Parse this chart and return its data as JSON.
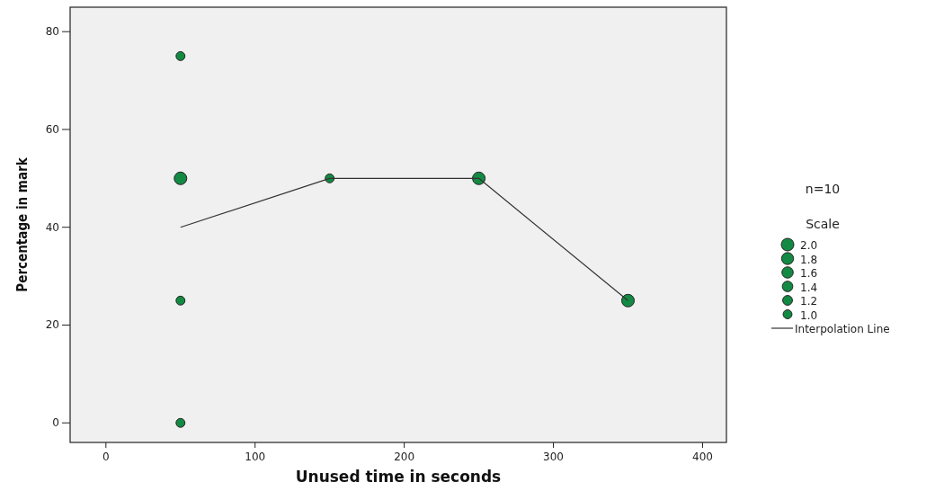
{
  "chart_data": {
    "type": "bubble",
    "xlabel": "Unused time in seconds",
    "ylabel": "Percentage in mark",
    "xlim": [
      -24,
      416
    ],
    "xticks": [
      0,
      100,
      200,
      300,
      400
    ],
    "ylim": [
      -4,
      85
    ],
    "yticks": [
      0,
      20,
      40,
      60,
      80
    ],
    "grid": false,
    "legend": "right",
    "legend_title": "Scale",
    "size_legend": [
      {
        "value": 2,
        "label": "2.0"
      },
      {
        "value": 1.8,
        "label": "1.8"
      },
      {
        "value": 1.6,
        "label": "1.6"
      },
      {
        "value": 1.4,
        "label": "1.4"
      },
      {
        "value": 1.2,
        "label": "1.2"
      },
      {
        "value": 1,
        "label": "1.0"
      }
    ],
    "annotations": [
      "n=10"
    ],
    "series": [
      {
        "color": "#138a43",
        "x": [
          50,
          50,
          50,
          50,
          150,
          250,
          350
        ],
        "values": [
          75,
          50,
          25,
          0,
          50,
          50,
          25
        ],
        "sizes": [
          1,
          2,
          1,
          1,
          1,
          2,
          2
        ]
      },
      {
        "type": "line",
        "name": "Interpolation Line",
        "color": "#333333",
        "x": [
          50,
          150,
          250,
          350
        ],
        "values": [
          40,
          50,
          50,
          25
        ],
        "line_style": "solid",
        "marker": "none"
      }
    ]
  }
}
